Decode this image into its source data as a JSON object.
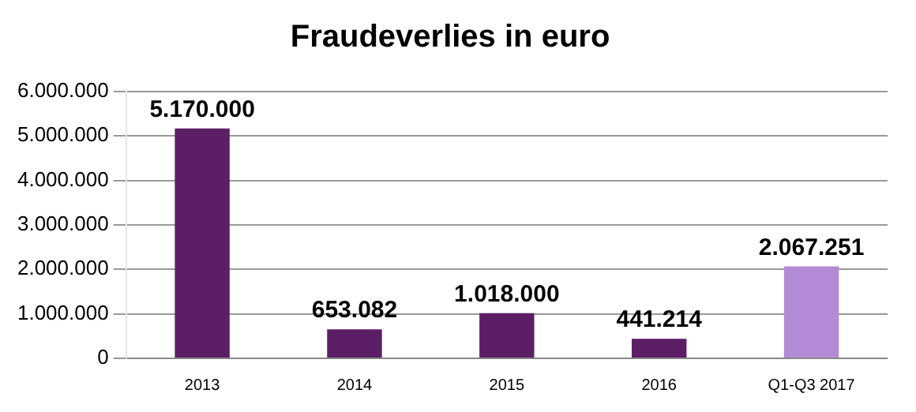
{
  "chart_data": {
    "type": "bar",
    "title": "Fraudeverlies in euro",
    "categories": [
      "2013",
      "2014",
      "2015",
      "2016",
      "Q1-Q3 2017"
    ],
    "values": [
      5170000,
      653082,
      1018000,
      441214,
      2067251
    ],
    "colors": [
      "#5c1f66",
      "#5c1f66",
      "#5c1f66",
      "#5c1f66",
      "#b38ad6"
    ],
    "value_labels": [
      "5.170.000",
      "653.082",
      "1.018.000",
      "441.214",
      "2.067.251"
    ],
    "ylim": [
      0,
      6000000
    ],
    "yticks": [
      {
        "value": 0,
        "label": "0"
      },
      {
        "value": 1000000,
        "label": "1.000.000"
      },
      {
        "value": 2000000,
        "label": "2.000.000"
      },
      {
        "value": 3000000,
        "label": "3.000.000"
      },
      {
        "value": 4000000,
        "label": "4.000.000"
      },
      {
        "value": 5000000,
        "label": "5.000.000"
      },
      {
        "value": 6000000,
        "label": "6.000.000"
      }
    ],
    "grid": "y"
  }
}
